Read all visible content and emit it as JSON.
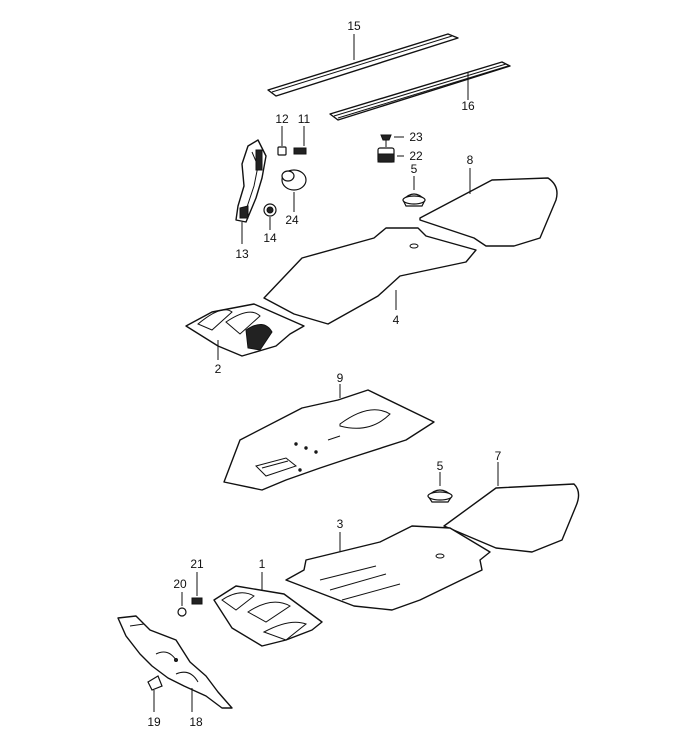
{
  "parts": {
    "p1": "1",
    "p2": "2",
    "p3": "3",
    "p4": "4",
    "p5a": "5",
    "p5b": "5",
    "p7": "7",
    "p8": "8",
    "p9": "9",
    "p11": "11",
    "p12": "12",
    "p13": "13",
    "p14": "14",
    "p15": "15",
    "p16": "16",
    "p18": "18",
    "p19": "19",
    "p20": "20",
    "p21": "21",
    "p22": "22",
    "p23": "23",
    "p24": "24"
  },
  "colors": {
    "line": "#111111",
    "background": "#ffffff"
  }
}
